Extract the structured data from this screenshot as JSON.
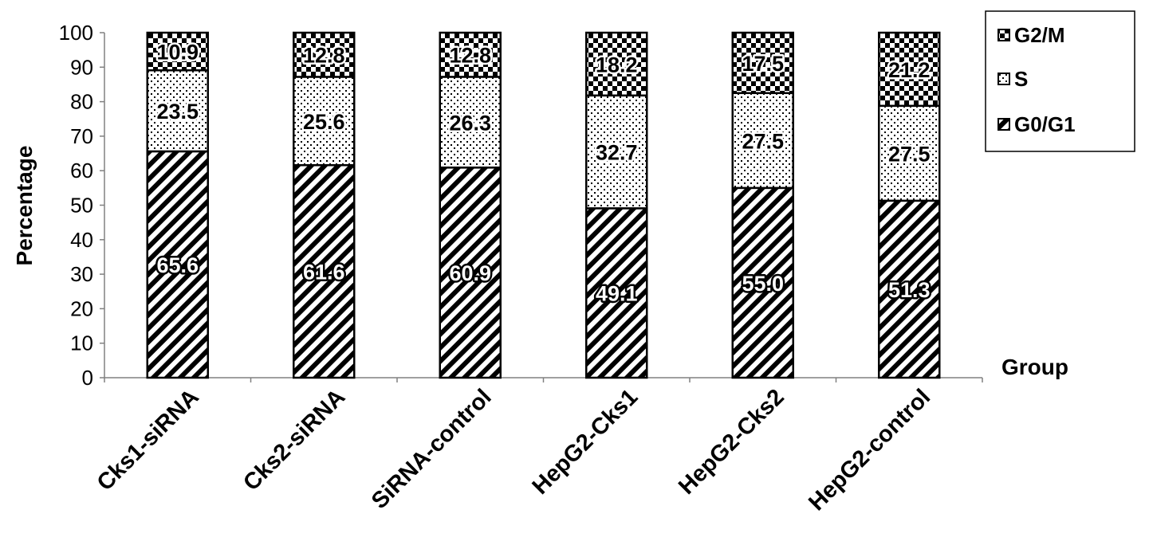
{
  "chart_data": {
    "type": "bar",
    "stacked": true,
    "categories": [
      "Cks1-siRNA",
      "Cks2-siRNA",
      "SiRNA-control",
      "HepG2-Cks1",
      "HepG2-Cks2",
      "HepG2-control"
    ],
    "series": [
      {
        "name": "G0/G1",
        "values": [
          65.6,
          61.6,
          60.9,
          49.1,
          55.0,
          51.3
        ],
        "labels": [
          "65.6",
          "61.6",
          "60.9",
          "49.1",
          "55.0",
          "51.3"
        ],
        "pattern": "diagonal-stripes"
      },
      {
        "name": "S",
        "values": [
          23.5,
          25.6,
          26.3,
          32.7,
          27.5,
          27.5
        ],
        "labels": [
          "23.5",
          "25.6",
          "26.3",
          "32.7",
          "27.5",
          "27.5"
        ],
        "pattern": "dots"
      },
      {
        "name": "G2/M",
        "values": [
          10.9,
          12.8,
          12.8,
          18.2,
          17.5,
          21.2
        ],
        "labels": [
          "10.9",
          "12.8",
          "12.8",
          "18.2",
          "17.5",
          "21.2"
        ],
        "pattern": "checkerboard"
      }
    ],
    "ylabel": "Percentage",
    "xlabel": "Group",
    "ylim": [
      0,
      100
    ],
    "yticks": [
      0,
      10,
      20,
      30,
      40,
      50,
      60,
      70,
      80,
      90,
      100
    ],
    "grid": false,
    "legend_position": "top-right",
    "legend_order": [
      "G2/M",
      "S",
      "G0/G1"
    ],
    "colors": {
      "fill": "#ffffff",
      "pattern": "#000000",
      "stroke": "#000000"
    }
  }
}
